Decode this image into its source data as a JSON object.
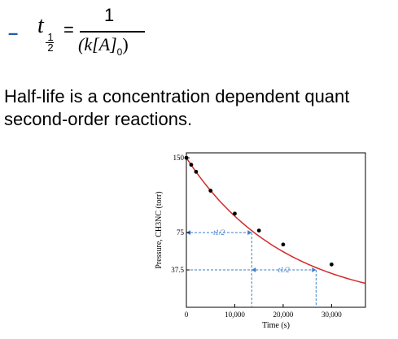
{
  "formula": {
    "bullet": "–",
    "lhs": "t",
    "lhs_sub_num": "1",
    "lhs_sub_den": "2",
    "equals": "=",
    "numerator": "1",
    "denominator_open": "(k[A]",
    "denominator_sub": "0",
    "denominator_close": ")"
  },
  "body": {
    "line1": "Half-life is a concentration dependent quant",
    "line2": "second-order reactions."
  },
  "chart_data": {
    "type": "line",
    "xlabel": "Time (s)",
    "ylabel": "Pressure, CH3NC (torr)",
    "xlim": [
      0,
      37000
    ],
    "ylim": [
      0,
      155
    ],
    "x_ticks": [
      0,
      10000,
      20000,
      30000
    ],
    "x_tick_labels": [
      "0",
      "10,000",
      "20,000",
      "30,000"
    ],
    "y_ticks": [
      37.5,
      75,
      150
    ],
    "y_tick_labels": [
      "37.5",
      "75",
      "150"
    ],
    "grid": false,
    "curve": {
      "color": "#d42a2a"
    },
    "points": [
      {
        "x": 0,
        "y": 150
      },
      {
        "x": 1000,
        "y": 143
      },
      {
        "x": 2000,
        "y": 136
      },
      {
        "x": 5000,
        "y": 117
      },
      {
        "x": 10000,
        "y": 94
      },
      {
        "x": 15000,
        "y": 77
      },
      {
        "x": 20000,
        "y": 63
      },
      {
        "x": 30000,
        "y": 43
      }
    ],
    "annotations": [
      {
        "label": "t1/2",
        "from_x": 0,
        "to_x": 13500,
        "y": 75
      },
      {
        "label": "t1/2",
        "from_x": 13500,
        "to_x": 26800,
        "y": 37.5
      }
    ],
    "annotation_color": "#3a7dc6"
  }
}
